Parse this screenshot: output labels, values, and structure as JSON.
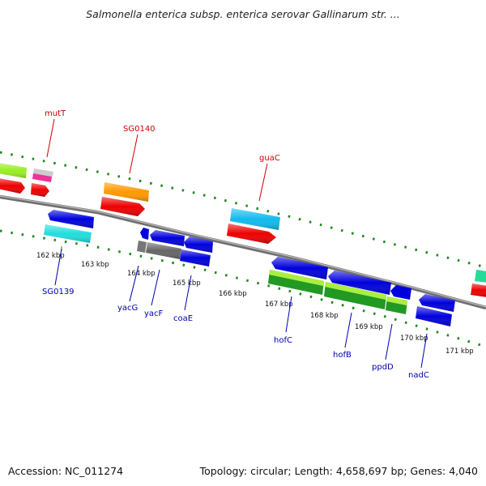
{
  "title": "Salmonella enterica subsp. enterica serovar Gallinarum str. ...",
  "footer": {
    "accession": "Accession: NC_011274",
    "summary": "Topology: circular; Length: 4,658,697 bp; Genes: 4,040"
  },
  "ticks": [
    "162 kbp",
    "163 kbp",
    "164 kbp",
    "165 kbp",
    "166 kbp",
    "167 kbp",
    "168 kbp",
    "169 kbp",
    "170 kbp",
    "171 kbp"
  ],
  "gene_labels_top": [
    "mutT",
    "SG0140",
    "guaC"
  ],
  "gene_labels_bottom": [
    "SG0139",
    "yacG",
    "yacF",
    "coaE",
    "hofC",
    "hofB",
    "ppdD",
    "nadC"
  ],
  "colors": {
    "red": "#ee0000",
    "blue": "#0000dd",
    "lime": "#99ee22",
    "orange": "#ff9900",
    "cyan": "#11bbee",
    "aqua": "#22dddd",
    "green": "#229922",
    "pink": "#ee3399",
    "gray": "#777777",
    "teal": "#22cc99",
    "backbone": "#888888",
    "dots": "#228822"
  }
}
